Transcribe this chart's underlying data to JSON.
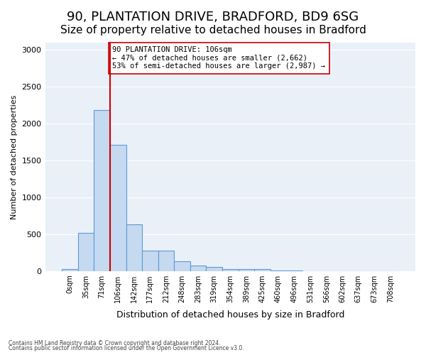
{
  "title1": "90, PLANTATION DRIVE, BRADFORD, BD9 6SG",
  "title2": "Size of property relative to detached houses in Bradford",
  "xlabel": "Distribution of detached houses by size in Bradford",
  "ylabel": "Number of detached properties",
  "footnote1": "Contains HM Land Registry data © Crown copyright and database right 2024.",
  "footnote2": "Contains public sector information licensed under the Open Government Licence v3.0.",
  "bin_labels": [
    "0sqm",
    "35sqm",
    "71sqm",
    "106sqm",
    "142sqm",
    "177sqm",
    "212sqm",
    "248sqm",
    "283sqm",
    "319sqm",
    "354sqm",
    "389sqm",
    "425sqm",
    "460sqm",
    "496sqm",
    "531sqm",
    "566sqm",
    "602sqm",
    "637sqm",
    "673sqm",
    "708sqm"
  ],
  "bar_values": [
    30,
    520,
    2180,
    1710,
    635,
    280,
    280,
    130,
    75,
    50,
    30,
    25,
    30,
    10,
    10,
    0,
    0,
    0,
    0,
    0,
    0
  ],
  "bar_color": "#c5d9f0",
  "bar_edge_color": "#5a9bd4",
  "vline_color": "#cc0000",
  "annotation_text": "90 PLANTATION DRIVE: 106sqm\n← 47% of detached houses are smaller (2,662)\n53% of semi-detached houses are larger (2,987) →",
  "annotation_box_color": "#ffffff",
  "annotation_box_edge": "#cc0000",
  "ylim": [
    0,
    3100
  ],
  "yticks": [
    0,
    500,
    1000,
    1500,
    2000,
    2500,
    3000
  ],
  "bg_color": "#eaf0f8",
  "title1_fontsize": 13,
  "title2_fontsize": 11
}
